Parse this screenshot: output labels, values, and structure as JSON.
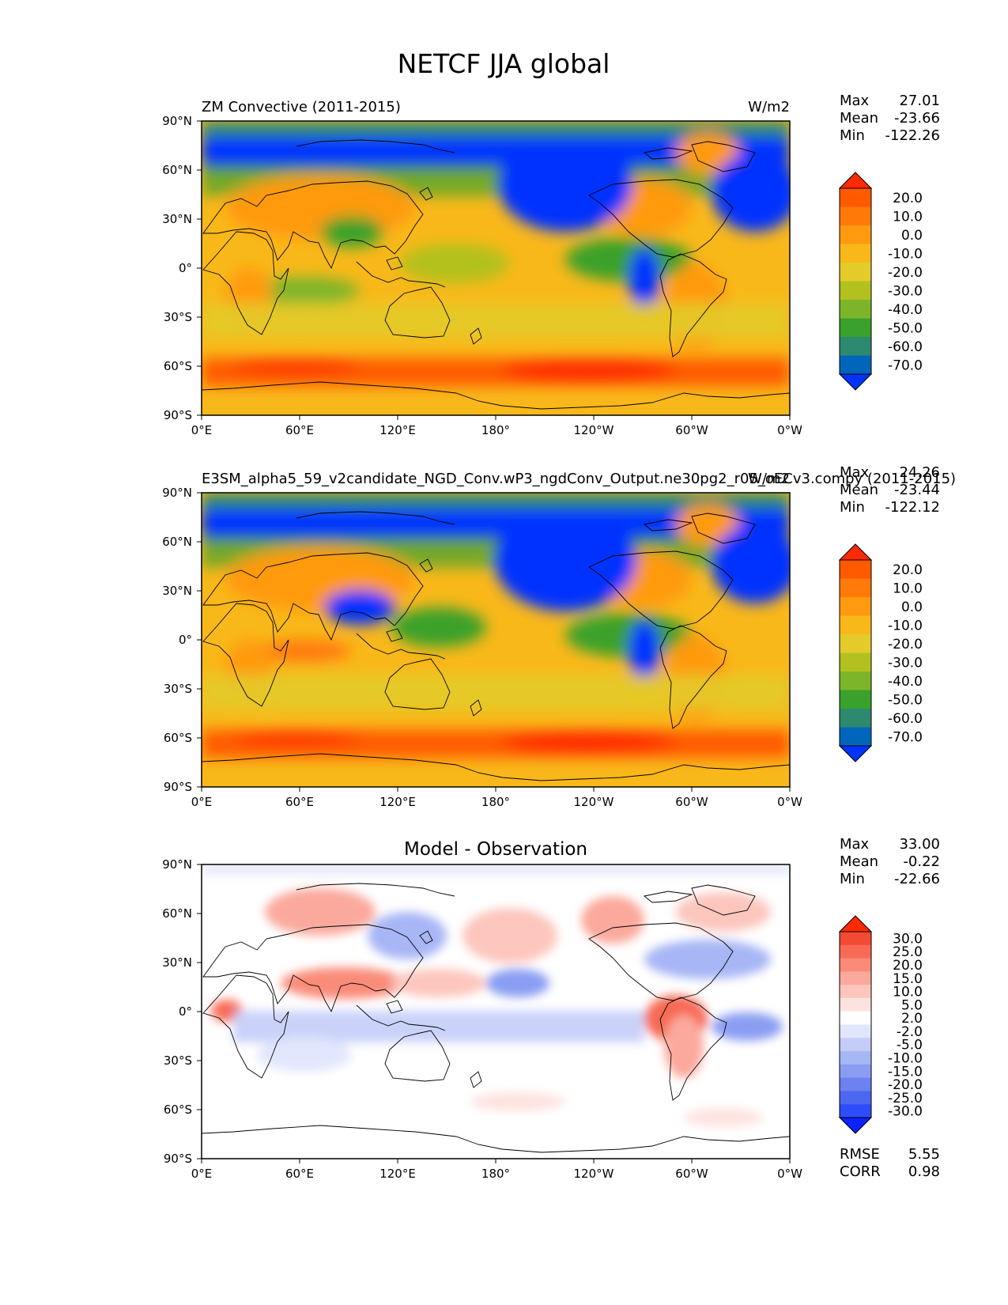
{
  "suptitle": "NETCF JJA global",
  "colors": {
    "abs_levels": [
      "#0033ff",
      "#0066bb",
      "#2e8a6e",
      "#3aa12c",
      "#7db52a",
      "#b2c11f",
      "#e3cb2a",
      "#f9b81a",
      "#ff9a10",
      "#ff7a08",
      "#ff5a00",
      "#ff2a00"
    ],
    "diff_levels": [
      "#0a22ff",
      "#2d4dfa",
      "#4d67ef",
      "#6c82f0",
      "#8a9df2",
      "#a7b6f5",
      "#c4cdf8",
      "#e1e6fc",
      "#ffffff",
      "#fde3df",
      "#fcc6bd",
      "#fba99c",
      "#fa8b79",
      "#f76a55",
      "#f34a33",
      "#ff2a00"
    ],
    "coastline": "#000000"
  },
  "chart_data": [
    {
      "type": "heatmap",
      "panel": "test",
      "title_left": "ZM Convective (2011-2015)",
      "title_right": "W/m2",
      "x_ticks": [
        "0°E",
        "60°E",
        "120°E",
        "180°",
        "120°W",
        "60°W",
        "0°W"
      ],
      "y_ticks": [
        "90°N",
        "60°N",
        "30°N",
        "0°",
        "30°S",
        "60°S",
        "90°S"
      ],
      "xlim": [
        0,
        360
      ],
      "ylim": [
        -90,
        90
      ],
      "stats": {
        "Max": "27.01",
        "Mean": "-23.66",
        "Min": "-122.26"
      },
      "colorbar_levels": [
        "20.0",
        "10.0",
        "0.0",
        "-10.0",
        "-20.0",
        "-30.0",
        "-40.0",
        "-50.0",
        "-60.0",
        "-70.0"
      ],
      "colorbar_extend": "both"
    },
    {
      "type": "heatmap",
      "panel": "reference",
      "title_left": "E3SM_alpha5_59_v2candidate_NGD_Conv.wP3_ngdConv_Output.ne30pg2_r05_oECv3.compy (2011-2015)",
      "title_right": "W/m2",
      "x_ticks": [
        "0°E",
        "60°E",
        "120°E",
        "180°",
        "120°W",
        "60°W",
        "0°W"
      ],
      "y_ticks": [
        "90°N",
        "60°N",
        "30°N",
        "0°",
        "30°S",
        "60°S",
        "90°S"
      ],
      "xlim": [
        0,
        360
      ],
      "ylim": [
        -90,
        90
      ],
      "stats": {
        "Max": "24.26",
        "Mean": "-23.44",
        "Min": "-122.12"
      },
      "colorbar_levels": [
        "20.0",
        "10.0",
        "0.0",
        "-10.0",
        "-20.0",
        "-30.0",
        "-40.0",
        "-50.0",
        "-60.0",
        "-70.0"
      ],
      "colorbar_extend": "both"
    },
    {
      "type": "heatmap",
      "panel": "difference",
      "title": "Model - Observation",
      "x_ticks": [
        "0°E",
        "60°E",
        "120°E",
        "180°",
        "120°W",
        "60°W",
        "0°W"
      ],
      "y_ticks": [
        "90°N",
        "60°N",
        "30°N",
        "0°",
        "30°S",
        "60°S",
        "90°S"
      ],
      "xlim": [
        0,
        360
      ],
      "ylim": [
        -90,
        90
      ],
      "stats": {
        "Max": "33.00",
        "Mean": "-0.22",
        "Min": "-22.66"
      },
      "colorbar_levels": [
        "30.0",
        "25.0",
        "20.0",
        "15.0",
        "10.0",
        "5.0",
        "2.0",
        "-2.0",
        "-5.0",
        "-10.0",
        "-15.0",
        "-20.0",
        "-25.0",
        "-30.0"
      ],
      "colorbar_extend": "both",
      "metrics": {
        "RMSE": "5.55",
        "CORR": "0.98"
      }
    }
  ]
}
